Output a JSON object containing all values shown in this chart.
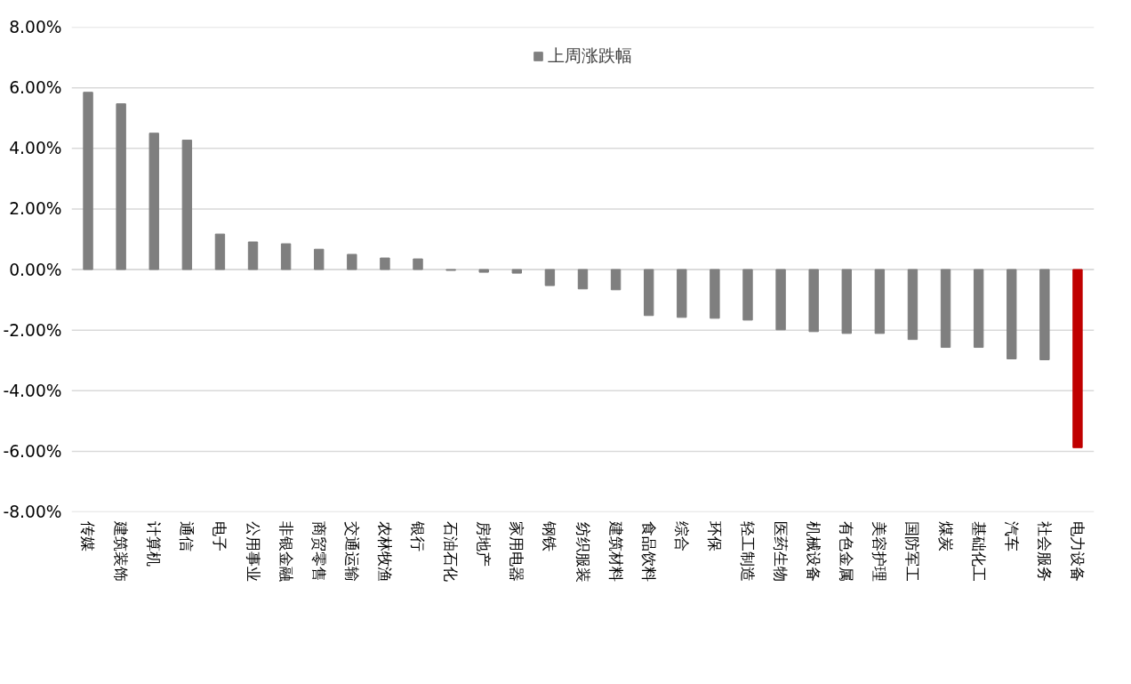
{
  "chart_data": {
    "type": "bar",
    "categories": [
      "传媒",
      "建筑装饰",
      "计算机",
      "通信",
      "电子",
      "公用事业",
      "非银金融",
      "商贸零售",
      "交通运输",
      "农林牧渔",
      "银行",
      "石油石化",
      "房地产",
      "家用电器",
      "钢铁",
      "纺织服装",
      "建筑材料",
      "食品饮料",
      "综合",
      "环保",
      "轻工制造",
      "医药生物",
      "机械设备",
      "有色金属",
      "美容护理",
      "国防军工",
      "煤炭",
      "基础化工",
      "汽车",
      "社会服务",
      "电力设备"
    ],
    "series": [
      {
        "name": "上周涨跌幅",
        "color": "#7f7f7f",
        "colors": [
          null,
          null,
          null,
          null,
          null,
          null,
          null,
          null,
          null,
          null,
          null,
          null,
          null,
          null,
          null,
          null,
          null,
          null,
          null,
          null,
          null,
          null,
          null,
          null,
          null,
          null,
          null,
          null,
          null,
          null,
          "#c00000"
        ],
        "values": [
          5.85,
          5.47,
          4.5,
          4.27,
          1.17,
          0.91,
          0.85,
          0.67,
          0.5,
          0.38,
          0.35,
          -0.03,
          -0.09,
          -0.12,
          -0.53,
          -0.64,
          -0.67,
          -1.52,
          -1.58,
          -1.61,
          -1.67,
          -1.99,
          -2.05,
          -2.11,
          -2.11,
          -2.31,
          -2.57,
          -2.57,
          -2.95,
          -2.98,
          -5.88
        ]
      }
    ],
    "ylim": [
      -8,
      8
    ],
    "yticks": [
      {
        "value": -8,
        "label": "-8.00%"
      },
      {
        "value": -6,
        "label": "-6.00%"
      },
      {
        "value": -4,
        "label": "-4.00%"
      },
      {
        "value": -2,
        "label": "-2.00%"
      },
      {
        "value": 0,
        "label": "0.00%"
      },
      {
        "value": 2,
        "label": "2.00%"
      },
      {
        "value": 4,
        "label": "4.00%"
      },
      {
        "value": 6,
        "label": "6.00%"
      },
      {
        "value": 8,
        "label": "8.00%"
      }
    ],
    "grid": "y",
    "legend": "top"
  }
}
